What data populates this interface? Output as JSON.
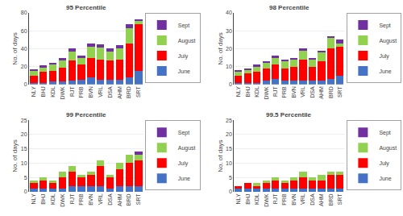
{
  "chart_data": [
    {
      "type": "bar",
      "title": "95 Percentile",
      "categories": [
        "NLY",
        "BHJ",
        "KDL",
        "DWK",
        "RJT",
        "PRB",
        "BVN",
        "VRL",
        "DSA",
        "AHM",
        "BRD",
        "SRT"
      ],
      "series": [
        {
          "name": "June",
          "color": "#4472C4",
          "values": [
            2,
            2,
            3,
            3,
            4,
            5,
            8,
            5,
            5,
            5,
            8,
            15
          ]
        },
        {
          "name": "July",
          "color": "#FF0000",
          "values": [
            8,
            12,
            12,
            16,
            23,
            17,
            22,
            23,
            22,
            23,
            38,
            52
          ]
        },
        {
          "name": "August",
          "color": "#92D050",
          "values": [
            5,
            5,
            7,
            8,
            10,
            8,
            12,
            13,
            10,
            12,
            17,
            4
          ]
        },
        {
          "name": "Sept",
          "color": "#7030A0",
          "values": [
            2,
            2,
            2,
            3,
            3,
            2,
            4,
            4,
            3,
            4,
            4,
            2
          ]
        }
      ],
      "ylabel": "No. of days",
      "ylim": [
        0,
        80
      ],
      "yticks": [
        0,
        20,
        40,
        60,
        80
      ],
      "grid": true,
      "stacked": true,
      "legend": "upper right"
    },
    {
      "type": "bar",
      "title": "98 Percentile",
      "categories": [
        "NLY",
        "BHJ",
        "KDL",
        "DWK",
        "RJT",
        "PRB",
        "BVN",
        "VRL",
        "DSA",
        "AHM",
        "BRD",
        "SRT"
      ],
      "series": [
        {
          "name": "June",
          "color": "#4472C4",
          "values": [
            1,
            1,
            1,
            2,
            3,
            2,
            2,
            2,
            2,
            2,
            3,
            5
          ]
        },
        {
          "name": "July",
          "color": "#FF0000",
          "values": [
            4,
            5,
            6,
            7,
            8,
            7,
            8,
            12,
            8,
            11,
            17,
            16
          ]
        },
        {
          "name": "August",
          "color": "#92D050",
          "values": [
            2,
            2,
            3,
            3,
            4,
            4,
            4,
            5,
            4,
            5,
            6,
            2
          ]
        },
        {
          "name": "Sept",
          "color": "#7030A0",
          "values": [
            1,
            1,
            1,
            1,
            1,
            1,
            1,
            1,
            1,
            1,
            1,
            2
          ]
        }
      ],
      "ylabel": "No. of days",
      "ylim": [
        0,
        40
      ],
      "yticks": [
        0,
        10,
        20,
        30,
        40
      ],
      "grid": true,
      "stacked": true,
      "legend": "upper right"
    },
    {
      "type": "bar",
      "title": "99 Percentile",
      "categories": [
        "NLY",
        "BHJ",
        "KDL",
        "DWK",
        "RJT",
        "PRB",
        "BVN",
        "VRL",
        "DSA",
        "AHM",
        "BRD",
        "SRT"
      ],
      "series": [
        {
          "name": "June",
          "color": "#4472C4",
          "values": [
            1,
            1,
            1,
            1,
            2,
            2,
            2,
            2,
            1,
            2,
            2,
            2
          ]
        },
        {
          "name": "July",
          "color": "#FF0000",
          "values": [
            2,
            3,
            2,
            4,
            5,
            3,
            4,
            7,
            4,
            6,
            8,
            9
          ]
        },
        {
          "name": "August",
          "color": "#92D050",
          "values": [
            1,
            1,
            1,
            2,
            2,
            1,
            1,
            2,
            1,
            2,
            3,
            2
          ]
        },
        {
          "name": "Sept",
          "color": "#7030A0",
          "values": [
            0,
            0,
            0,
            0,
            0,
            0,
            0,
            0,
            0,
            0,
            0,
            1
          ]
        }
      ],
      "ylabel": "No. of days",
      "ylim": [
        0,
        25
      ],
      "yticks": [
        0,
        5,
        10,
        15,
        20,
        25
      ],
      "grid": true,
      "stacked": true,
      "legend": "upper right"
    },
    {
      "type": "bar",
      "title": "99.5 Percentile",
      "categories": [
        "NLY",
        "BHJ",
        "KDL",
        "DWK",
        "RJT",
        "PRB",
        "BVN",
        "VRL",
        "DSA",
        "AHM",
        "BRD",
        "SRT"
      ],
      "series": [
        {
          "name": "June",
          "color": "#4472C4",
          "values": [
            1,
            1,
            1,
            1,
            1,
            1,
            1,
            1,
            1,
            1,
            1,
            1
          ]
        },
        {
          "name": "July",
          "color": "#FF0000",
          "values": [
            1,
            2,
            1,
            2,
            3,
            2,
            3,
            4,
            3,
            3,
            5,
            5
          ]
        },
        {
          "name": "August",
          "color": "#92D050",
          "values": [
            0,
            0,
            1,
            1,
            1,
            1,
            1,
            2,
            1,
            2,
            1,
            1
          ]
        },
        {
          "name": "Sept",
          "color": "#7030A0",
          "values": [
            0,
            0,
            0,
            0,
            0,
            0,
            0,
            0,
            0,
            0,
            0,
            0
          ]
        }
      ],
      "ylabel": "No. of days",
      "ylim": [
        0,
        25
      ],
      "yticks": [
        0,
        5,
        10,
        15,
        20,
        25
      ],
      "grid": true,
      "stacked": true,
      "legend": "upper right"
    }
  ]
}
